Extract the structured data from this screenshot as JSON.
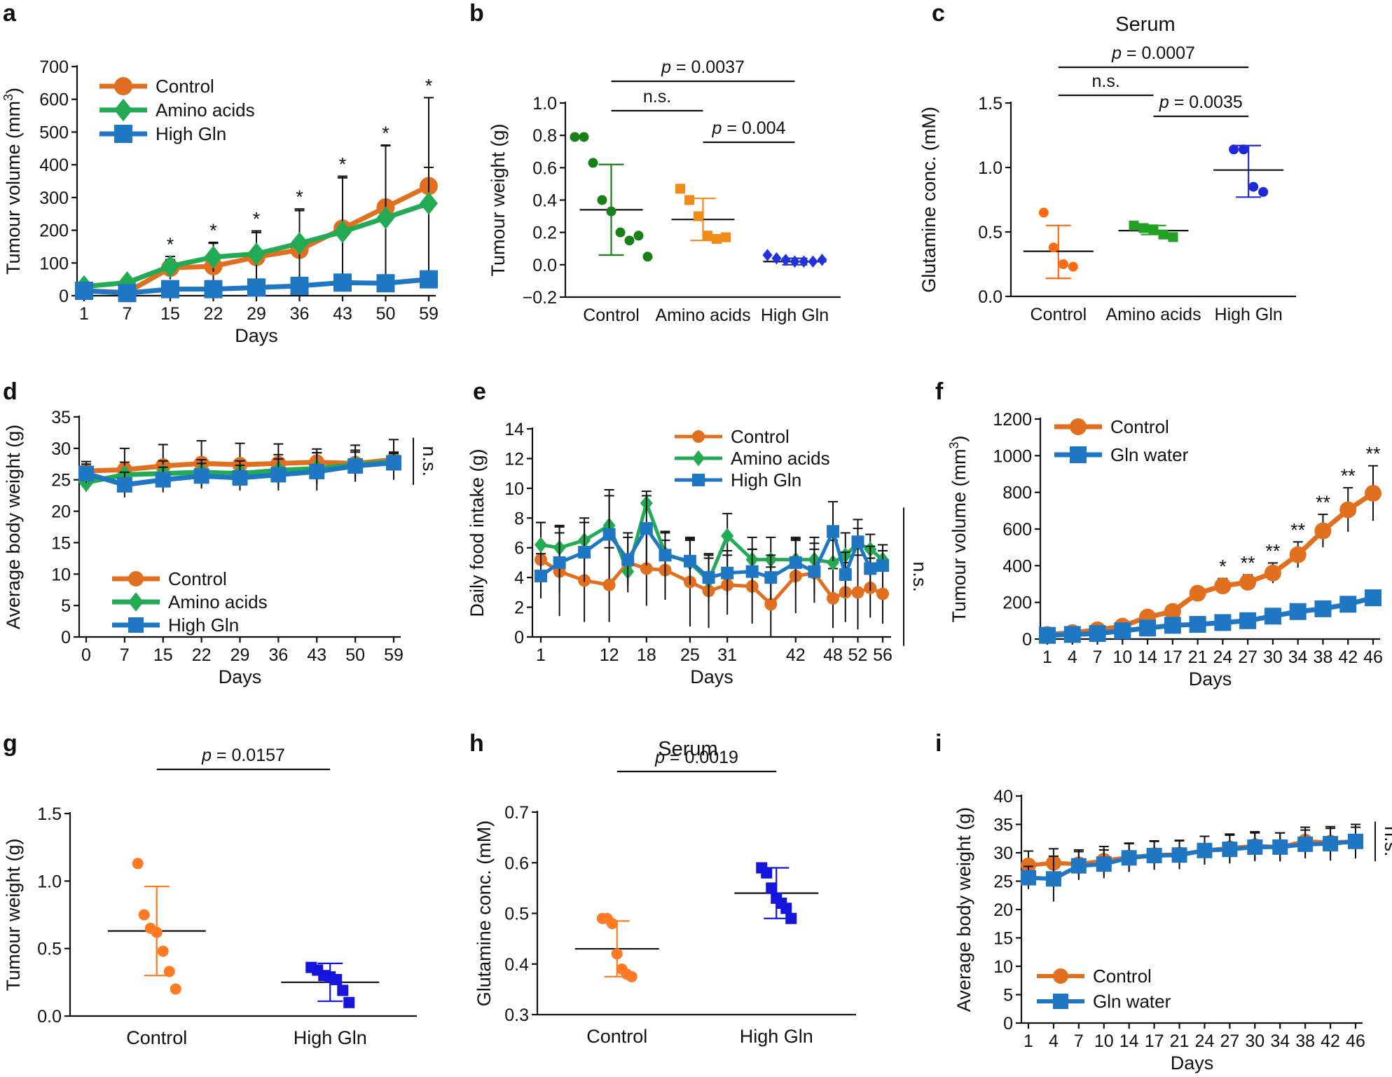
{
  "figure": {
    "colors": {
      "control": "#E07020",
      "amino": "#22AA55",
      "highgln": "#1F77C4",
      "b_control": "#188018",
      "b_amino": "#F08A18",
      "b_high": "#2233DD",
      "c_control": "#FF6A10",
      "c_amino": "#22A022",
      "c_high": "#1E28D8",
      "g_control": "#FF7A22",
      "g_high": "#1414DD",
      "axis": "#111111"
    }
  },
  "chart_data": [
    {
      "panel": "a",
      "type": "line",
      "categories": [
        "1",
        "7",
        "15",
        "22",
        "29",
        "36",
        "43",
        "50",
        "59"
      ],
      "xlabel": "Days",
      "ylabel": "Tumour volume (mm",
      "ylabel_sup": "3",
      "ylabel_close": ")",
      "ylim": [
        0,
        700
      ],
      "yticks": [
        "0",
        "100",
        "200",
        "300",
        "400",
        "500",
        "600",
        "700"
      ],
      "legend": [
        "Control",
        "Amino acids",
        "High Gln"
      ],
      "series": [
        {
          "name": "Control",
          "color": "#E07020",
          "marker": "circle",
          "values": [
            15,
            10,
            85,
            90,
            118,
            140,
            205,
            270,
            335
          ],
          "err": [
            10,
            10,
            35,
            70,
            75,
            125,
            160,
            190,
            270
          ]
        },
        {
          "name": "Amino acids",
          "color": "#22AA55",
          "marker": "diamond",
          "values": [
            28,
            40,
            90,
            118,
            128,
            160,
            195,
            238,
            282
          ],
          "err": [
            8,
            8,
            20,
            45,
            70,
            100,
            165,
            220,
            110
          ]
        },
        {
          "name": "High Gln",
          "color": "#1F77C4",
          "marker": "square",
          "values": [
            15,
            8,
            20,
            20,
            25,
            30,
            40,
            38,
            50
          ],
          "err": [
            5,
            5,
            10,
            10,
            12,
            15,
            20,
            20,
            25
          ]
        }
      ],
      "annotations": [
        "",
        "",
        "*",
        "*",
        "*",
        "*",
        "*",
        "*",
        "*"
      ]
    },
    {
      "panel": "b",
      "type": "scatter",
      "categories": [
        "Control",
        "Amino acids",
        "High Gln"
      ],
      "ylabel": "Tumour weight (g)",
      "ylim": [
        -0.2,
        1.0
      ],
      "yticks": [
        "−0.2",
        "0.0",
        "0.2",
        "0.4",
        "0.6",
        "0.8",
        "1.0"
      ],
      "groups": [
        {
          "name": "Control",
          "color": "#188018",
          "marker": "circle",
          "points": [
            0.79,
            0.79,
            0.63,
            0.4,
            0.33,
            0.2,
            0.15,
            0.18,
            0.05
          ],
          "mean": 0.34,
          "sd_low": 0.06,
          "sd_high": 0.62
        },
        {
          "name": "Amino acids",
          "color": "#F08A18",
          "marker": "square",
          "points": [
            0.47,
            0.4,
            0.3,
            0.18,
            0.16,
            0.17
          ],
          "mean": 0.28,
          "sd_low": 0.15,
          "sd_high": 0.41
        },
        {
          "name": "High Gln",
          "color": "#2233DD",
          "marker": "diamond",
          "points": [
            0.06,
            0.04,
            0.03,
            0.02,
            0.02,
            0.02,
            0.03
          ],
          "mean": 0.02,
          "sd_low": 0.0,
          "sd_high": 0.04
        }
      ],
      "comparisons": [
        {
          "g1": 0,
          "g2": 2,
          "label_italic": "p",
          "label": " = 0.0037",
          "level": 0
        },
        {
          "g1": 0,
          "g2": 1,
          "label": "n.s.",
          "level": 1
        },
        {
          "g1": 1,
          "g2": 2,
          "label_italic": "p",
          "label": " = 0.004",
          "level": 2
        }
      ]
    },
    {
      "panel": "c",
      "type": "scatter",
      "title": "Serum",
      "categories": [
        "Control",
        "Amino acids",
        "High Gln"
      ],
      "ylabel": "Glutamine conc. (mM)",
      "ylim": [
        0,
        1.5
      ],
      "yticks": [
        "0.0",
        "0.5",
        "1.0",
        "1.5"
      ],
      "groups": [
        {
          "name": "Control",
          "color": "#FF6A10",
          "marker": "circle",
          "points": [
            0.65,
            0.38,
            0.25,
            0.23
          ],
          "mean": 0.35,
          "sd_low": 0.14,
          "sd_high": 0.55
        },
        {
          "name": "Amino acids",
          "color": "#22A022",
          "marker": "square",
          "points": [
            0.55,
            0.53,
            0.52,
            0.48,
            0.46
          ],
          "mean": 0.51,
          "sd_low": 0.48,
          "sd_high": 0.55
        },
        {
          "name": "High Gln",
          "color": "#1E28D8",
          "marker": "circle",
          "points": [
            1.14,
            1.14,
            0.85,
            0.81
          ],
          "mean": 0.98,
          "sd_low": 0.77,
          "sd_high": 1.17
        }
      ],
      "comparisons": [
        {
          "g1": 0,
          "g2": 2,
          "label_italic": "p",
          "label": " = 0.0007",
          "level": 0
        },
        {
          "g1": 0,
          "g2": 1,
          "label": "n.s.",
          "level": 1
        },
        {
          "g1": 1,
          "g2": 2,
          "label_italic": "p",
          "label": " = 0.0035",
          "level": 2
        }
      ]
    },
    {
      "panel": "d",
      "type": "line",
      "categories": [
        "0",
        "7",
        "15",
        "22",
        "29",
        "36",
        "43",
        "50",
        "59"
      ],
      "xlabel": "Days",
      "ylabel": "Average body weight (g)",
      "ylim": [
        0,
        35
      ],
      "yticks": [
        "0",
        "5",
        "10",
        "15",
        "20",
        "25",
        "30",
        "35"
      ],
      "legend": [
        "Control",
        "Amino acids",
        "High Gln"
      ],
      "ns": "n.s.",
      "series": [
        {
          "name": "Control",
          "color": "#E07020",
          "marker": "circle",
          "values": [
            26.4,
            26.6,
            27.2,
            27.6,
            27.4,
            27.6,
            27.8,
            27.6,
            28.2
          ],
          "err": [
            1.5,
            3.4,
            3.4,
            3.6,
            3.4,
            3.1,
            2.1,
            2.9,
            3.2
          ]
        },
        {
          "name": "Amino acids",
          "color": "#22AA55",
          "marker": "diamond",
          "values": [
            24.6,
            25.8,
            26.0,
            26.2,
            26.0,
            26.5,
            26.8,
            27.4,
            27.9
          ],
          "err": [
            1.5,
            2.0,
            2.0,
            2.0,
            2.0,
            2.5,
            2.5,
            2.0,
            1.5
          ]
        },
        {
          "name": "High Gln",
          "color": "#1F77C4",
          "marker": "square",
          "values": [
            26.0,
            24.2,
            25.0,
            25.6,
            25.3,
            25.8,
            26.3,
            27.2,
            27.7
          ],
          "err": [
            1.5,
            2.0,
            2.0,
            2.0,
            2.0,
            2.5,
            3.0,
            2.5,
            1.5
          ]
        }
      ]
    },
    {
      "panel": "e",
      "type": "line",
      "x": [
        1,
        4,
        8,
        12,
        15,
        18,
        21,
        25,
        28,
        31,
        35,
        38,
        42,
        45,
        48,
        50,
        52,
        54,
        56
      ],
      "xticks": [
        "1",
        "12",
        "18",
        "25",
        "31",
        "42",
        "48",
        "52",
        "56"
      ],
      "xlabel": "Days",
      "ylabel": "Daily food intake (g)",
      "ylim": [
        0,
        14
      ],
      "yticks": [
        "0",
        "2",
        "4",
        "6",
        "8",
        "10",
        "12",
        "14"
      ],
      "legend": [
        "Control",
        "Amino acids",
        "High Gln"
      ],
      "ns": "n.s.",
      "series": [
        {
          "name": "Control",
          "color": "#E07020",
          "marker": "circle",
          "values": [
            5.2,
            4.4,
            3.8,
            3.5,
            5.0,
            4.6,
            4.5,
            3.7,
            3.1,
            3.5,
            3.4,
            2.2,
            4.1,
            4.3,
            2.6,
            3.0,
            3.0,
            3.3,
            2.9
          ],
          "err": [
            2.5,
            3.0,
            2.8,
            2.5,
            2.0,
            2.5,
            2.0,
            3.0,
            2.5,
            2.0,
            2.5,
            2.5,
            2.5,
            2.0,
            2.0,
            2.0,
            2.5,
            2.0,
            2.0
          ]
        },
        {
          "name": "Amino acids",
          "color": "#22AA55",
          "marker": "diamond",
          "values": [
            6.2,
            6.0,
            6.5,
            7.5,
            4.4,
            9.0,
            5.6,
            5.0,
            3.8,
            6.8,
            5.2,
            5.2,
            5.2,
            5.2,
            5.0,
            5.5,
            6.3,
            5.9,
            5.2
          ],
          "err": [
            1.5,
            1.5,
            1.5,
            2.0,
            1.0,
            0.5,
            1.5,
            1.5,
            1.5,
            1.5,
            1.5,
            1.5,
            1.5,
            1.5,
            1.5,
            1.5,
            1.0,
            1.0,
            1.0
          ]
        },
        {
          "name": "High Gln",
          "color": "#1F77C4",
          "marker": "square",
          "values": [
            4.1,
            5.0,
            5.7,
            6.9,
            5.2,
            7.3,
            5.5,
            5.1,
            4.0,
            4.3,
            4.4,
            4.0,
            5.0,
            4.4,
            7.1,
            4.2,
            6.4,
            4.6,
            4.8
          ],
          "err": [
            1.5,
            2.0,
            2.0,
            3.0,
            1.5,
            2.5,
            1.5,
            1.5,
            1.5,
            1.5,
            1.5,
            1.5,
            1.5,
            1.5,
            2.0,
            1.5,
            1.5,
            1.5,
            1.0
          ]
        }
      ]
    },
    {
      "panel": "f",
      "type": "line",
      "categories": [
        "1",
        "4",
        "7",
        "10",
        "14",
        "17",
        "21",
        "24",
        "27",
        "30",
        "34",
        "38",
        "42",
        "46"
      ],
      "xlabel": "Days",
      "ylabel": "Tumour volume (mm",
      "ylabel_sup": "3",
      "ylabel_close": ")",
      "ylim": [
        0,
        1200
      ],
      "yticks": [
        "0",
        "200",
        "400",
        "600",
        "800",
        "1000",
        "1200"
      ],
      "legend": [
        "Control",
        "Gln water"
      ],
      "series": [
        {
          "name": "Control",
          "color": "#E07020",
          "marker": "circle",
          "values": [
            25,
            35,
            50,
            70,
            120,
            150,
            250,
            290,
            310,
            360,
            460,
            590,
            705,
            795
          ],
          "err": [
            5,
            8,
            10,
            15,
            20,
            30,
            30,
            40,
            40,
            55,
            70,
            90,
            120,
            150
          ]
        },
        {
          "name": "Gln water",
          "color": "#1F77C4",
          "marker": "square",
          "values": [
            20,
            25,
            30,
            45,
            60,
            75,
            80,
            90,
            100,
            125,
            150,
            165,
            190,
            225
          ],
          "err": [
            5,
            5,
            5,
            8,
            10,
            10,
            15,
            15,
            15,
            20,
            25,
            25,
            30,
            30
          ]
        }
      ],
      "annotations": [
        "",
        "",
        "",
        "",
        "",
        "",
        "",
        "*",
        "**",
        "**",
        "**",
        "**",
        "**",
        "**"
      ]
    },
    {
      "panel": "g",
      "type": "scatter",
      "categories": [
        "Control",
        "High Gln"
      ],
      "ylabel": "Tumour weight (g)",
      "ylim": [
        0,
        1.5
      ],
      "yticks": [
        "0.0",
        "0.5",
        "1.0",
        "1.5"
      ],
      "groups": [
        {
          "name": "Control",
          "color": "#FF7A22",
          "marker": "circle",
          "points": [
            1.13,
            0.75,
            0.65,
            0.62,
            0.48,
            0.33,
            0.2
          ],
          "mean": 0.63,
          "sd_low": 0.3,
          "sd_high": 0.96
        },
        {
          "name": "High Gln",
          "color": "#1414DD",
          "marker": "square",
          "points": [
            0.36,
            0.34,
            0.3,
            0.29,
            0.27,
            0.19,
            0.1
          ],
          "mean": 0.25,
          "sd_low": 0.11,
          "sd_high": 0.39
        }
      ],
      "comparisons": [
        {
          "g1": 0,
          "g2": 1,
          "label_italic": "p",
          "label": " = 0.0157",
          "level": 0
        }
      ]
    },
    {
      "panel": "h",
      "type": "scatter",
      "title": "Serum",
      "categories": [
        "Control",
        "High Gln"
      ],
      "ylabel": "Glutamine conc. (mM)",
      "ylim": [
        0.3,
        0.7
      ],
      "yticks": [
        "0.3",
        "0.4",
        "0.5",
        "0.6",
        "0.7"
      ],
      "groups": [
        {
          "name": "Control",
          "color": "#FF7A22",
          "marker": "circle",
          "points": [
            0.49,
            0.49,
            0.48,
            0.42,
            0.39,
            0.38,
            0.375
          ],
          "mean": 0.43,
          "sd_low": 0.375,
          "sd_high": 0.485
        },
        {
          "name": "High Gln",
          "color": "#1414DD",
          "marker": "square",
          "points": [
            0.59,
            0.58,
            0.55,
            0.53,
            0.52,
            0.51,
            0.49
          ],
          "mean": 0.54,
          "sd_low": 0.49,
          "sd_high": 0.59
        }
      ],
      "comparisons": [
        {
          "g1": 0,
          "g2": 1,
          "label_italic": "p",
          "label": " = 0.0019",
          "level": 0
        }
      ]
    },
    {
      "panel": "i",
      "type": "line",
      "categories": [
        "1",
        "4",
        "7",
        "10",
        "14",
        "17",
        "21",
        "24",
        "27",
        "30",
        "34",
        "38",
        "42",
        "46"
      ],
      "xlabel": "Days",
      "ylabel": "Average body weight (g)",
      "ylim": [
        0,
        40
      ],
      "yticks": [
        "0",
        "5",
        "10",
        "15",
        "20",
        "25",
        "30",
        "35",
        "40"
      ],
      "legend": [
        "Control",
        "Gln water"
      ],
      "ns": "n.s.",
      "series": [
        {
          "name": "Control",
          "color": "#E07020",
          "marker": "circle",
          "values": [
            27.8,
            28.2,
            28.0,
            28.6,
            29.2,
            29.6,
            29.7,
            30.4,
            30.8,
            31.2,
            31.0,
            32.0,
            31.8,
            32.0
          ],
          "err": [
            2.5,
            2.5,
            2.5,
            2.5,
            2.5,
            2.5,
            2.5,
            2.5,
            2.5,
            2.5,
            2.5,
            2.5,
            2.5,
            2.5
          ]
        },
        {
          "name": "Gln water",
          "color": "#1F77C4",
          "marker": "square",
          "values": [
            25.6,
            25.4,
            27.7,
            28.0,
            29.1,
            29.5,
            29.6,
            30.4,
            30.6,
            31.0,
            31.0,
            31.5,
            31.6,
            32.0
          ],
          "err": [
            2.0,
            4.0,
            2.5,
            2.5,
            2.5,
            2.5,
            2.5,
            2.5,
            2.5,
            2.5,
            2.5,
            2.5,
            3.0,
            3.0
          ]
        }
      ]
    }
  ]
}
